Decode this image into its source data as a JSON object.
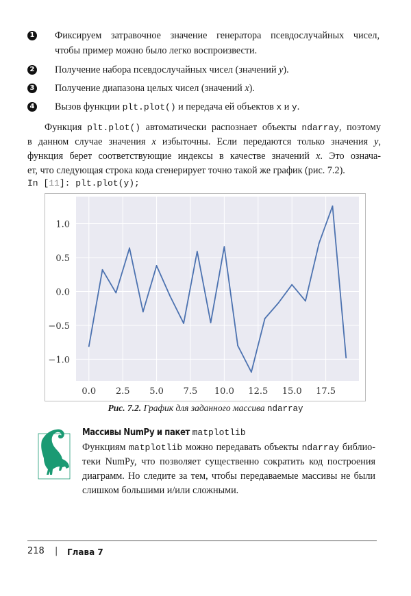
{
  "list_items": [
    {
      "marker": "1",
      "lines": [
        [
          {
            "t": "Фиксируем затравочное значение генератора псевдослучайных чисел,"
          }
        ],
        [
          {
            "t": "чтобы пример можно было легко воспроизвести."
          }
        ]
      ]
    },
    {
      "marker": "2",
      "lines": [
        [
          {
            "t": "Получение набора псевдослучайных чисел (значений "
          },
          {
            "t": "y",
            "i": true
          },
          {
            "t": ")."
          }
        ]
      ]
    },
    {
      "marker": "3",
      "lines": [
        [
          {
            "t": "Получение диапазона целых чисел (значений "
          },
          {
            "t": "x",
            "i": true
          },
          {
            "t": ")."
          }
        ]
      ]
    },
    {
      "marker": "4",
      "lines": [
        [
          {
            "t": "Вызов функции "
          },
          {
            "t": "plt.plot()",
            "c": true
          },
          {
            "t": " и передача ей объектов "
          },
          {
            "t": "x",
            "c": true
          },
          {
            "t": " и "
          },
          {
            "t": "y",
            "c": true
          },
          {
            "t": "."
          }
        ]
      ]
    }
  ],
  "paragraph": [
    [
      {
        "t": "Функция "
      },
      {
        "t": "plt.plot()",
        "c": true
      },
      {
        "t": " автоматически распознает объекты "
      },
      {
        "t": "ndarray",
        "c": true
      },
      {
        "t": ", поэтому"
      }
    ],
    [
      {
        "t": "в данном случае значения "
      },
      {
        "t": "x",
        "i": true
      },
      {
        "t": " избыточны. Если передаются только значения "
      },
      {
        "t": "y",
        "i": true
      },
      {
        "t": ","
      }
    ],
    [
      {
        "t": "функция берет соответствующие индексы в качестве значений "
      },
      {
        "t": "x",
        "i": true
      },
      {
        "t": ". Это означа-"
      }
    ],
    [
      {
        "t": "ет, что следующая строка кода сгенерирует точно такой же график (рис. 7.2)."
      }
    ]
  ],
  "code_input": {
    "prompt": "In [",
    "num": "11",
    "rest": "]: plt.plot(y);"
  },
  "chart_data": {
    "type": "line",
    "x": [
      0,
      1,
      2,
      3,
      4,
      5,
      6,
      7,
      8,
      9,
      10,
      11,
      12,
      13,
      14,
      15,
      16,
      17,
      18,
      19
    ],
    "series": [
      {
        "values": [
          -0.81,
          0.32,
          -0.02,
          0.64,
          -0.3,
          0.38,
          -0.07,
          -0.47,
          0.59,
          -0.46,
          0.66,
          -0.8,
          -1.19,
          -0.4,
          -0.17,
          0.1,
          -0.14,
          0.71,
          1.26,
          -0.98
        ],
        "color": "#4c72b0"
      }
    ],
    "xticks": [
      "0.0",
      "2.5",
      "5.0",
      "7.5",
      "10.0",
      "12.5",
      "15.0",
      "17.5"
    ],
    "yticks": [
      "−1.0",
      "−0.5",
      "0.0",
      "0.5",
      "1.0"
    ],
    "xlim": [
      -0.95,
      19.95
    ],
    "ylim": [
      -1.32,
      1.4
    ],
    "grid": true,
    "background": "#eaeaf2"
  },
  "caption": {
    "label": "Рис. 7.2.",
    "text": " График для заданного массива ",
    "code": "ndarray"
  },
  "note": {
    "heading": "Массивы NumPy и пакет ",
    "heading_code": "matplotlib",
    "icon": "lemur-icon",
    "icon_color": "#1a9a73",
    "lines": [
      [
        {
          "t": "Функциям "
        },
        {
          "t": "matplotlib",
          "c": true
        },
        {
          "t": " можно передавать объекты "
        },
        {
          "t": "ndarray",
          "c": true
        },
        {
          "t": " библио-"
        }
      ],
      [
        {
          "t": "теки NumPy, что позволяет существенно сократить код построения"
        }
      ],
      [
        {
          "t": "диаграмм. Но следите за тем, чтобы передаваемые массивы не были"
        }
      ],
      [
        {
          "t": "слишком большими и/или сложными."
        }
      ]
    ]
  },
  "footer": {
    "page": "218",
    "separator": "|",
    "chapter": "Глава 7"
  }
}
